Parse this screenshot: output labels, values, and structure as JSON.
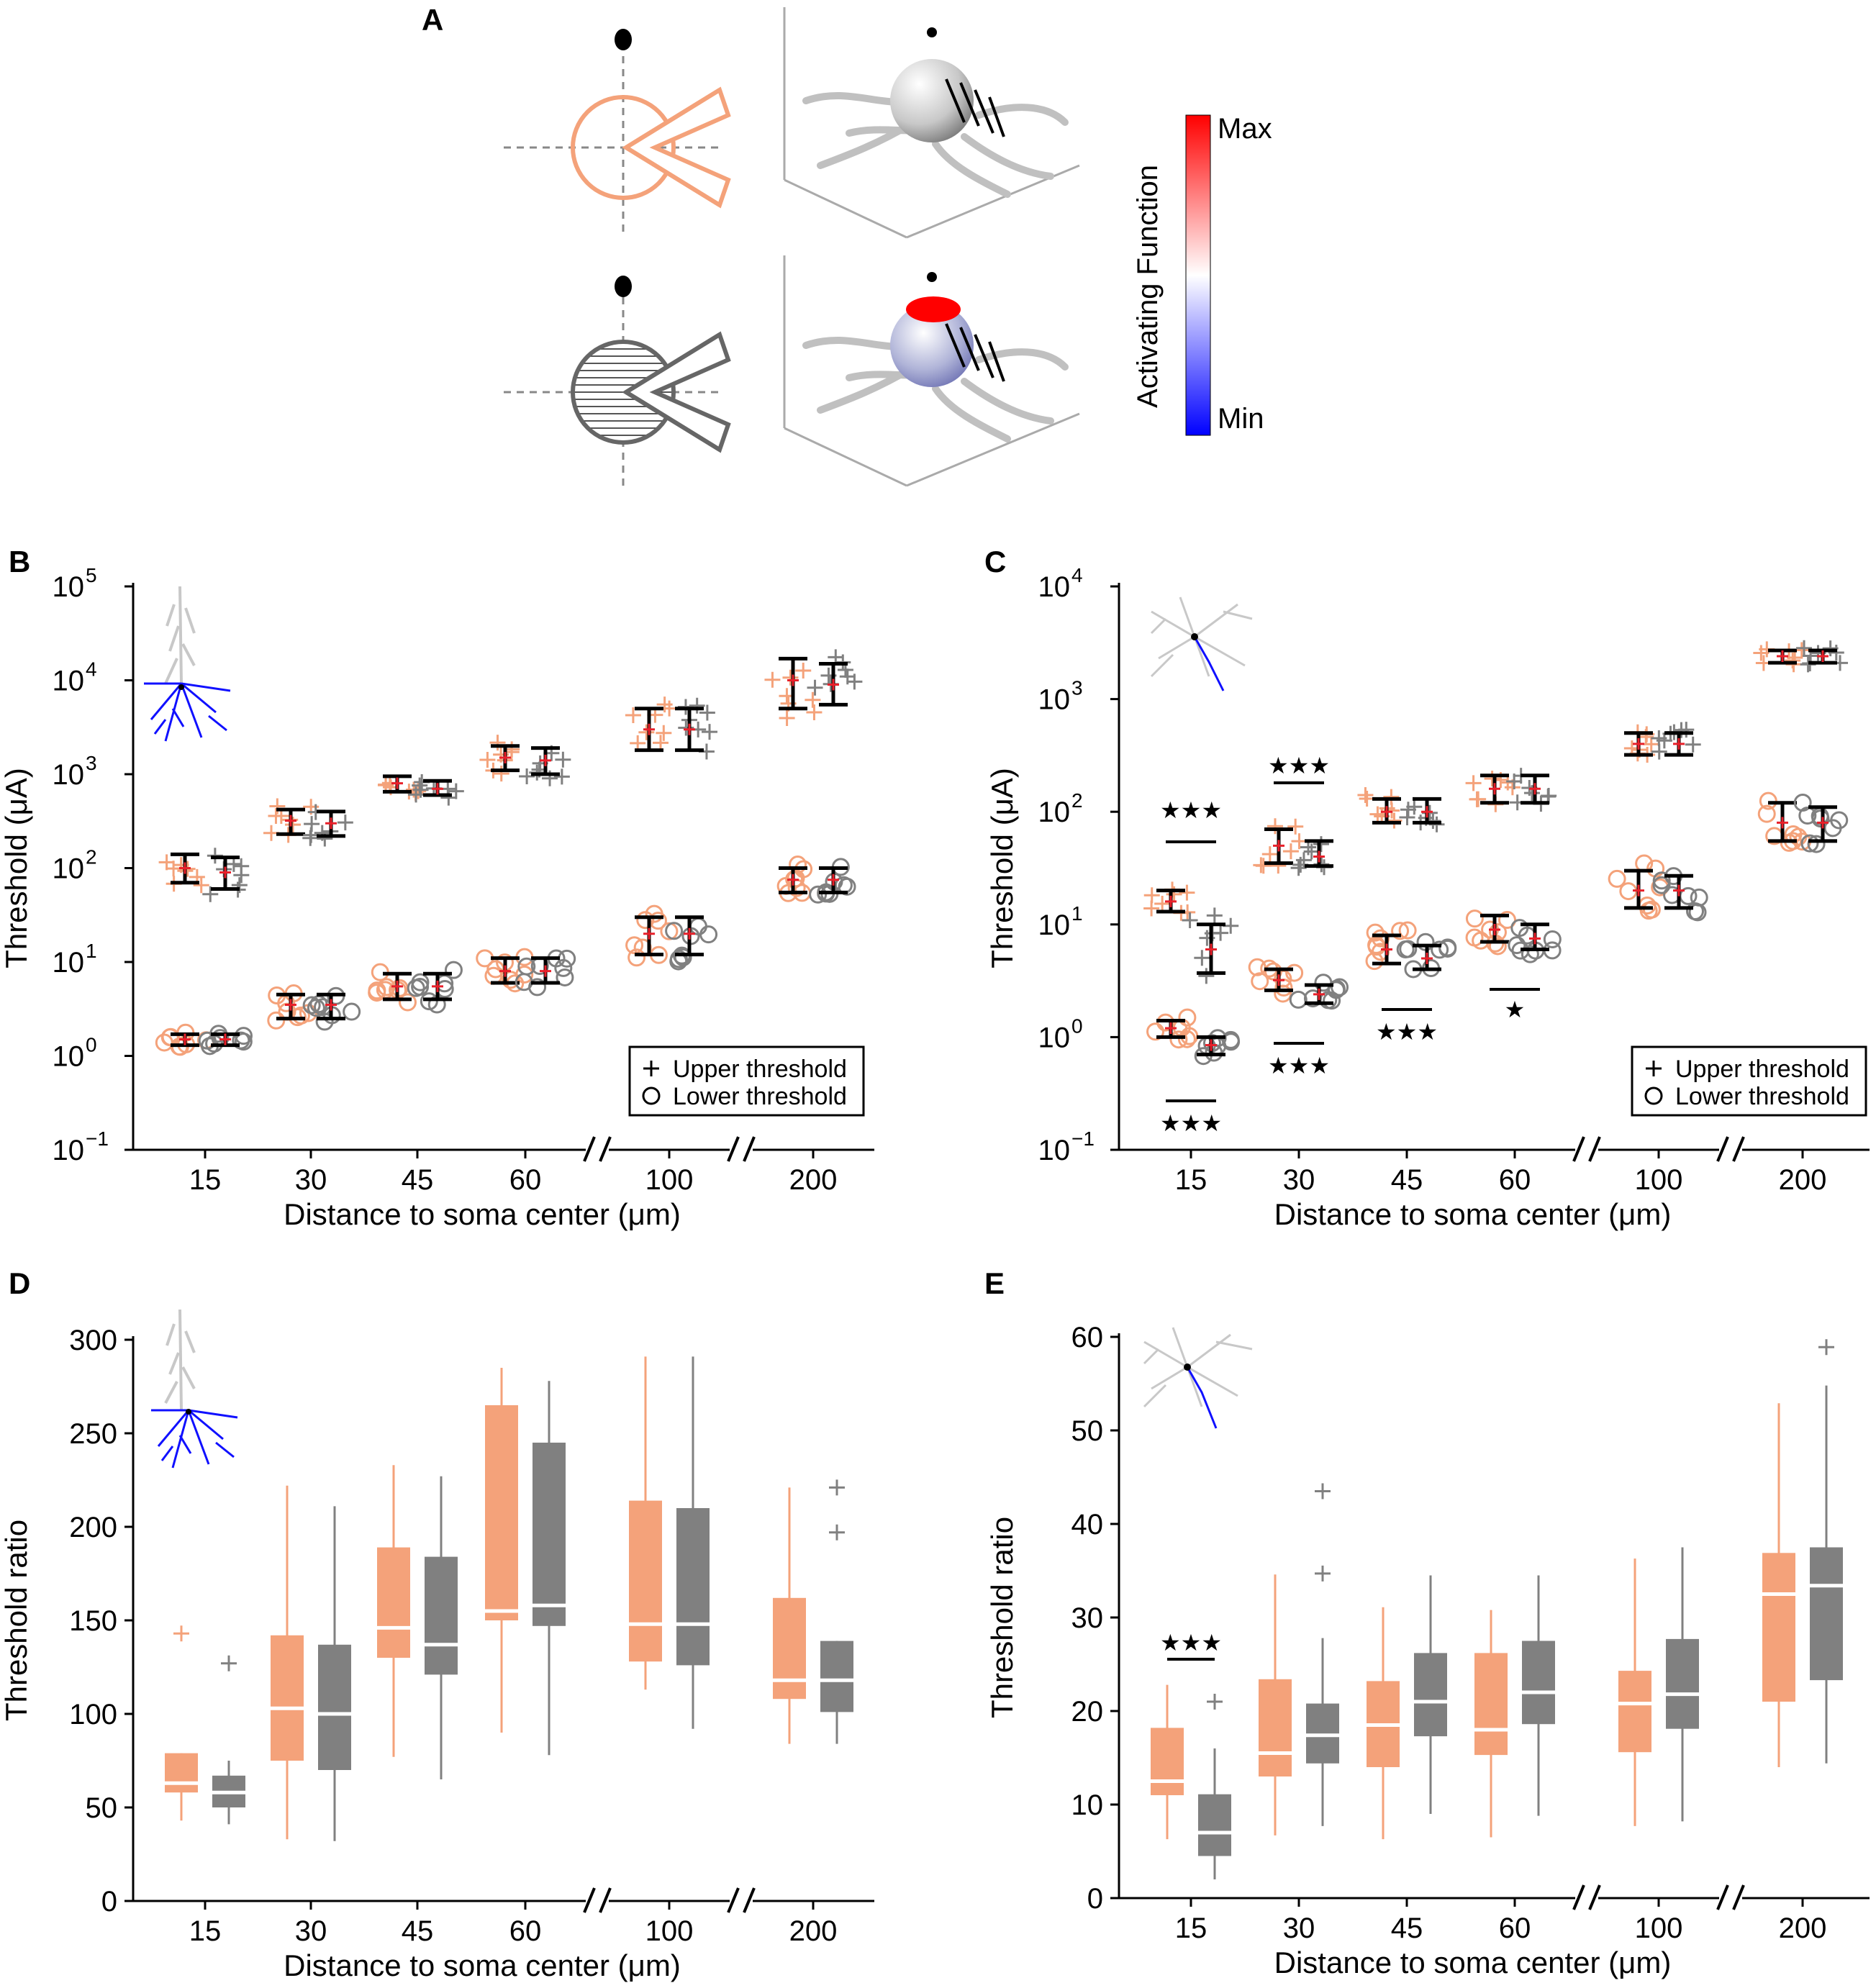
{
  "panel_labels": [
    "A",
    "B",
    "C",
    "D",
    "E"
  ],
  "colors": {
    "orange": "#f4a27a",
    "gray": "#808080",
    "red": "#e8202a",
    "black": "#000000",
    "blue_ch": "#1010ff"
  },
  "colorbar": {
    "label": "Activating Function",
    "max_label": "Max",
    "min_label": "Min"
  },
  "chart_data": [
    {
      "panel": "B",
      "type": "errorbar-scatter",
      "scale": "log",
      "ylabel": "Threshold (μA)",
      "xlabel": "Distance to soma center (μm)",
      "categories": [
        "15",
        "30",
        "45",
        "60",
        "100",
        "200"
      ],
      "ytick_labels": [
        "10",
        "10",
        "10",
        "10",
        "10",
        "10",
        "10"
      ],
      "ytick_exps": [
        "−1",
        "0",
        "1",
        "2",
        "3",
        "4",
        "5"
      ],
      "ylim": [
        -1,
        5
      ],
      "legend": [
        "Upper threshold",
        "Lower threshold"
      ],
      "series": [
        {
          "name": "Upper threshold",
          "color": "orange",
          "mean": [
            100,
            320,
            800,
            1500,
            3000,
            10000
          ],
          "low": [
            70,
            230,
            650,
            1100,
            1800,
            5000
          ],
          "high": [
            140,
            420,
            950,
            2000,
            5000,
            17000
          ]
        },
        {
          "name": "Upper threshold",
          "color": "gray",
          "mean": [
            90,
            300,
            700,
            1400,
            3000,
            9000
          ],
          "low": [
            60,
            220,
            600,
            1000,
            1800,
            5500
          ],
          "high": [
            130,
            400,
            850,
            1900,
            5000,
            15000
          ]
        },
        {
          "name": "Lower threshold",
          "color": "orange",
          "mean": [
            1.5,
            3.5,
            5.5,
            8,
            20,
            75
          ],
          "low": [
            1.3,
            2.5,
            4,
            6,
            12,
            55
          ],
          "high": [
            1.7,
            4.5,
            7.5,
            11,
            30,
            100
          ]
        },
        {
          "name": "Lower threshold",
          "color": "gray",
          "mean": [
            1.5,
            3.5,
            5.5,
            8,
            20,
            75
          ],
          "low": [
            1.3,
            2.5,
            4,
            6,
            12,
            55
          ],
          "high": [
            1.7,
            4.5,
            7.5,
            11,
            30,
            100
          ]
        }
      ]
    },
    {
      "panel": "C",
      "type": "errorbar-scatter",
      "scale": "log",
      "ylabel": "Threshold (μA)",
      "xlabel": "Distance to soma center (μm)",
      "categories": [
        "15",
        "30",
        "45",
        "60",
        "100",
        "200"
      ],
      "ytick_labels": [
        "10",
        "10",
        "10",
        "10",
        "10",
        "10"
      ],
      "ytick_exps": [
        "−1",
        "0",
        "1",
        "2",
        "3",
        "4"
      ],
      "ylim": [
        -1,
        4
      ],
      "legend": [
        "Upper threshold",
        "Lower threshold"
      ],
      "significance": [
        "★★★",
        "★★★",
        "★★★",
        "★★★",
        "★★★",
        "★"
      ],
      "series": [
        {
          "name": "Upper threshold",
          "color": "orange",
          "mean": [
            16,
            50,
            100,
            160,
            400,
            2400
          ],
          "low": [
            13,
            35,
            80,
            120,
            320,
            2100
          ],
          "high": [
            20,
            70,
            130,
            210,
            500,
            2700
          ]
        },
        {
          "name": "Upper threshold",
          "color": "gray",
          "mean": [
            6,
            40,
            100,
            160,
            400,
            2400
          ],
          "low": [
            3.7,
            33,
            80,
            120,
            320,
            2100
          ],
          "high": [
            10,
            55,
            130,
            210,
            500,
            2700
          ]
        },
        {
          "name": "Lower threshold",
          "color": "orange",
          "mean": [
            1.2,
            3.2,
            6,
            9,
            20,
            80
          ],
          "low": [
            1.0,
            2.6,
            4.5,
            7,
            14,
            55
          ],
          "high": [
            1.4,
            4,
            8,
            12,
            30,
            120
          ]
        },
        {
          "name": "Lower threshold",
          "color": "gray",
          "mean": [
            0.85,
            2.4,
            5,
            7.5,
            20,
            80
          ],
          "low": [
            0.7,
            2.0,
            4,
            6,
            14,
            55
          ],
          "high": [
            1.0,
            2.9,
            6.5,
            10,
            27,
            110
          ]
        }
      ]
    },
    {
      "panel": "D",
      "type": "box",
      "ylabel": "Threshold ratio",
      "xlabel": "Distance to soma center (μm)",
      "categories": [
        "15",
        "30",
        "45",
        "60",
        "100",
        "200"
      ],
      "yticks": [
        "0",
        "50",
        "100",
        "150",
        "200",
        "250",
        "300"
      ],
      "ylim": [
        0,
        300
      ],
      "series": [
        {
          "name": "orange",
          "color": "orange",
          "q1": [
            58,
            75,
            130,
            150,
            128,
            108
          ],
          "median": [
            63,
            103,
            146,
            155,
            148,
            118
          ],
          "q3": [
            79,
            142,
            189,
            265,
            214,
            162
          ],
          "whislo": [
            43,
            33,
            77,
            90,
            113,
            84
          ],
          "whishi": [
            79,
            222,
            233,
            285,
            291,
            221
          ],
          "fliers": [
            [
              143
            ],
            [],
            [],
            [],
            [],
            []
          ]
        },
        {
          "name": "gray",
          "color": "gray",
          "q1": [
            50,
            70,
            121,
            147,
            126,
            101
          ],
          "median": [
            58,
            100,
            137,
            158,
            148,
            118
          ],
          "q3": [
            67,
            137,
            184,
            245,
            210,
            139
          ],
          "whislo": [
            41,
            32,
            65,
            78,
            92,
            84
          ],
          "whishi": [
            75,
            211,
            227,
            278,
            291,
            139
          ],
          "fliers": [
            [
              127
            ],
            [],
            [],
            [],
            [],
            [
              197,
              221
            ]
          ]
        }
      ]
    },
    {
      "panel": "E",
      "type": "box",
      "ylabel": "Threshold ratio",
      "xlabel": "Distance to soma center (μm)",
      "categories": [
        "15",
        "30",
        "45",
        "60",
        "100",
        "200"
      ],
      "yticks": [
        "0",
        "10",
        "20",
        "30",
        "40",
        "50",
        "60"
      ],
      "ylim": [
        0,
        60
      ],
      "significance": [
        "★★★"
      ],
      "series": [
        {
          "name": "orange",
          "color": "orange",
          "q1": [
            11,
            13,
            14,
            15.3,
            15.6,
            21
          ],
          "median": [
            12.5,
            15.5,
            18.5,
            18,
            20.8,
            32.5
          ],
          "q3": [
            18.2,
            23.4,
            23.2,
            26.2,
            24.3,
            36.9
          ],
          "whislo": [
            6.3,
            6.7,
            6.3,
            6.5,
            7.7,
            14
          ],
          "whishi": [
            22.8,
            34.6,
            31.1,
            30.8,
            36.3,
            52.9
          ],
          "fliers": [
            [],
            [],
            [],
            [],
            [],
            []
          ]
        },
        {
          "name": "gray",
          "color": "gray",
          "q1": [
            4.5,
            14.4,
            17.3,
            18.6,
            18.1,
            23.3
          ],
          "median": [
            7,
            17.4,
            21,
            22,
            21.8,
            33.4
          ],
          "q3": [
            11.1,
            20.8,
            26.2,
            27.5,
            27.7,
            37.5
          ],
          "whislo": [
            2,
            7.7,
            9,
            8.8,
            8.2,
            14.4
          ],
          "whishi": [
            16,
            27.8,
            34.5,
            34.5,
            37.5,
            54.8
          ],
          "fliers": [
            [
              21
            ],
            [
              34.7,
              43.5
            ],
            [],
            [],
            [],
            [
              58.9
            ]
          ]
        }
      ]
    }
  ]
}
